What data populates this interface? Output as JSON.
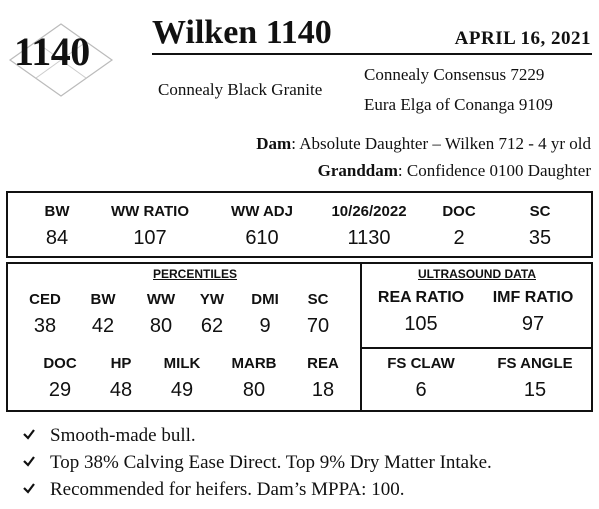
{
  "lot": {
    "number": "1140"
  },
  "title": "Wilken 1140",
  "date": "APRIL  16, 2021",
  "pedigree": {
    "sire": "Connealy Black Granite",
    "sire_sire": "Connealy Consensus 7229",
    "sire_dam": "Eura Elga of Conanga 9109",
    "dam_label": "Dam",
    "dam": ": Absolute Daughter – Wilken 712 - 4 yr old",
    "granddam_label": "Granddam",
    "granddam": ": Confidence 0100 Daughter"
  },
  "top_stats": [
    {
      "label": "BW",
      "value": "84"
    },
    {
      "label": "WW RATIO",
      "value": "107"
    },
    {
      "label": "WW ADJ",
      "value": "610"
    },
    {
      "label": "10/26/2022",
      "value": "1130"
    },
    {
      "label": "DOC",
      "value": "2"
    },
    {
      "label": "SC",
      "value": "35"
    }
  ],
  "percentiles": {
    "header": "PERCENTILES",
    "row1": [
      {
        "label": "CED",
        "value": "38"
      },
      {
        "label": "BW",
        "value": "42"
      },
      {
        "label": "WW",
        "value": "80"
      },
      {
        "label": "YW",
        "value": "62"
      },
      {
        "label": "DMI",
        "value": "9"
      },
      {
        "label": "SC",
        "value": "70"
      }
    ],
    "row2": [
      {
        "label": "DOC",
        "value": "29"
      },
      {
        "label": "HP",
        "value": "48"
      },
      {
        "label": "MILK",
        "value": "49"
      },
      {
        "label": "MARB",
        "value": "80"
      },
      {
        "label": "REA",
        "value": "18"
      }
    ]
  },
  "ultrasound": {
    "header": "ULTRASOUND DATA",
    "items": [
      {
        "label": "REA RATIO",
        "value": "105"
      },
      {
        "label": "IMF RATIO",
        "value": "97"
      }
    ]
  },
  "fs": [
    {
      "label": "FS CLAW",
      "value": "6"
    },
    {
      "label": "FS ANGLE",
      "value": "15"
    }
  ],
  "bullets": [
    "Smooth-made bull.",
    "Top 38% Calving Ease Direct. Top 9% Dry Matter Intake.",
    "Recommended for heifers. Dam’s MPPA: 100."
  ],
  "icons": {
    "bullet": "check-icon",
    "lot_mark": "diamond-outline-icon"
  }
}
